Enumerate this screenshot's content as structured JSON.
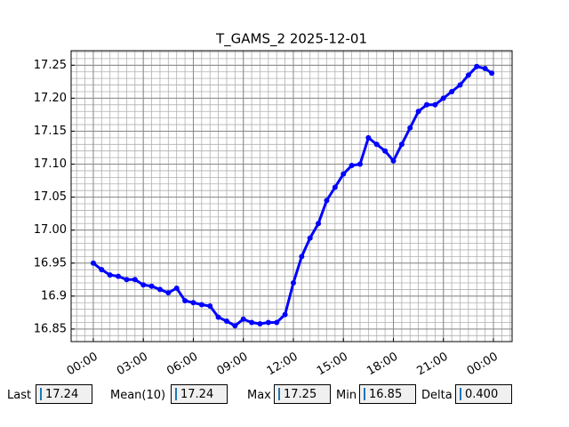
{
  "chart_data": {
    "type": "line",
    "title": "T_GAMS_2 2025-12-01",
    "x": [
      0,
      0.5,
      1,
      1.5,
      2,
      2.5,
      3,
      3.5,
      4,
      4.5,
      5,
      5.5,
      6,
      6.5,
      7,
      7.5,
      8,
      8.5,
      9,
      9.5,
      10,
      10.5,
      11,
      11.5,
      12,
      12.5,
      13,
      13.5,
      14,
      14.5,
      15,
      15.5,
      16,
      16.5,
      17,
      17.5,
      18,
      18.5,
      19,
      19.5,
      20,
      20.5,
      21,
      21.5,
      22,
      22.5,
      23,
      23.5,
      23.9
    ],
    "series": [
      {
        "name": "T_GAMS_2",
        "color": "#0000ff",
        "values": [
          16.95,
          16.94,
          16.932,
          16.93,
          16.925,
          16.925,
          16.917,
          16.915,
          16.91,
          16.905,
          16.912,
          16.893,
          16.89,
          16.887,
          16.885,
          16.868,
          16.862,
          16.855,
          16.865,
          16.86,
          16.858,
          16.86,
          16.86,
          16.872,
          16.92,
          16.96,
          16.988,
          17.01,
          17.045,
          17.065,
          17.085,
          17.098,
          17.1,
          17.14,
          17.13,
          17.12,
          17.105,
          17.13,
          17.155,
          17.18,
          17.19,
          17.19,
          17.2,
          17.21,
          17.22,
          17.235,
          17.248,
          17.245,
          17.238
        ]
      }
    ],
    "xlim": [
      -1.33,
      25.12
    ],
    "ylim": [
      16.831,
      17.272
    ],
    "xticks": [
      {
        "value": 0,
        "label": "00:00"
      },
      {
        "value": 3,
        "label": "03:00"
      },
      {
        "value": 6,
        "label": "06:00"
      },
      {
        "value": 9,
        "label": "09:00"
      },
      {
        "value": 12,
        "label": "12:00"
      },
      {
        "value": 15,
        "label": "15:00"
      },
      {
        "value": 18,
        "label": "18:00"
      },
      {
        "value": 21,
        "label": "21:00"
      },
      {
        "value": 24,
        "label": "00:00"
      }
    ],
    "yticks": [
      16.85,
      16.9,
      {
        "value": 16.95,
        "label": "16.95"
      },
      {
        "value": 17.0,
        "label": "17.00"
      },
      17.05,
      {
        "value": 17.1,
        "label": "17.10"
      },
      17.15,
      {
        "value": 17.2,
        "label": "17.20"
      },
      17.25
    ],
    "grid": true,
    "minor_grid": true
  },
  "controls": [
    {
      "label": "Last",
      "value": "17.24"
    },
    {
      "label": "Mean(10)",
      "value": "17.24"
    },
    {
      "label": "Max",
      "value": "17.25"
    },
    {
      "label": "Min",
      "value": "16.85"
    },
    {
      "label": "Delta",
      "value": "0.400"
    }
  ]
}
